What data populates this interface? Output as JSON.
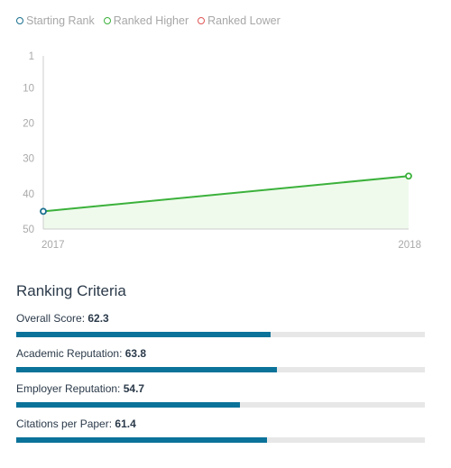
{
  "legend": [
    {
      "label": "Starting Rank",
      "color": "#1a6f8f"
    },
    {
      "label": "Ranked Higher",
      "color": "#3bb13b"
    },
    {
      "label": "Ranked Lower",
      "color": "#e05555"
    }
  ],
  "chart_data": {
    "type": "line",
    "x": [
      "2017",
      "2018"
    ],
    "series": [
      {
        "values": [
          45,
          35
        ]
      }
    ],
    "y_ticks": [
      1,
      10,
      20,
      30,
      40,
      50
    ],
    "ylim": [
      50,
      1
    ],
    "y_inverted": true,
    "line_color": "#3bb13b",
    "fill_color": "#effaec",
    "start_marker_color": "#1a6f8f",
    "end_marker_color": "#3bb13b",
    "axis_color": "#cccccc",
    "tick_label_color": "#a9a9a9"
  },
  "criteria": {
    "title": "Ranking Criteria",
    "items": [
      {
        "label": "Overall Score: ",
        "value": "62.3",
        "fraction": 0.623
      },
      {
        "label": "Academic Reputation: ",
        "value": "63.8",
        "fraction": 0.638
      },
      {
        "label": "Employer Reputation: ",
        "value": "54.7",
        "fraction": 0.547
      },
      {
        "label": "Citations per Paper: ",
        "value": "61.4",
        "fraction": 0.614
      }
    ]
  }
}
